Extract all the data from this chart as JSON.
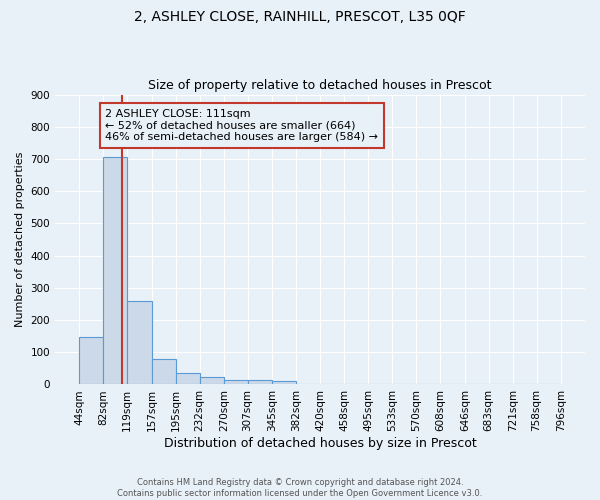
{
  "title": "2, ASHLEY CLOSE, RAINHILL, PRESCOT, L35 0QF",
  "subtitle": "Size of property relative to detached houses in Prescot",
  "xlabel": "Distribution of detached houses by size in Prescot",
  "ylabel": "Number of detached properties",
  "bar_edges": [
    44,
    82,
    119,
    157,
    195,
    232,
    270,
    307,
    345,
    382,
    420,
    458,
    495,
    533,
    570,
    608,
    646,
    683,
    721,
    758,
    796
  ],
  "bar_heights": [
    148,
    706,
    260,
    80,
    35,
    22,
    13,
    13,
    10,
    0,
    0,
    0,
    0,
    0,
    0,
    0,
    0,
    0,
    0,
    0
  ],
  "bar_color": "#ccd9e8",
  "bar_edgecolor": "#5b9bd5",
  "bar_linewidth": 0.8,
  "vline_x": 111,
  "vline_color": "#c0392b",
  "vline_linewidth": 1.5,
  "annotation_line1": "2 ASHLEY CLOSE: 111sqm",
  "annotation_line2": "← 52% of detached houses are smaller (664)",
  "annotation_line3": "46% of semi-detached houses are larger (584) →",
  "annotation_fontsize": 8,
  "annotation_box_color": "#c0392b",
  "ylim": [
    0,
    900
  ],
  "yticks": [
    0,
    100,
    200,
    300,
    400,
    500,
    600,
    700,
    800,
    900
  ],
  "xtick_labels": [
    "44sqm",
    "82sqm",
    "119sqm",
    "157sqm",
    "195sqm",
    "232sqm",
    "270sqm",
    "307sqm",
    "345sqm",
    "382sqm",
    "420sqm",
    "458sqm",
    "495sqm",
    "533sqm",
    "570sqm",
    "608sqm",
    "646sqm",
    "683sqm",
    "721sqm",
    "758sqm",
    "796sqm"
  ],
  "background_color": "#e8f0f8",
  "grid_color": "#ffffff",
  "footer_text": "Contains HM Land Registry data © Crown copyright and database right 2024.\nContains public sector information licensed under the Open Government Licence v3.0.",
  "title_fontsize": 10,
  "subtitle_fontsize": 9,
  "xlabel_fontsize": 9,
  "ylabel_fontsize": 8,
  "tick_fontsize": 7.5,
  "footer_fontsize": 6
}
